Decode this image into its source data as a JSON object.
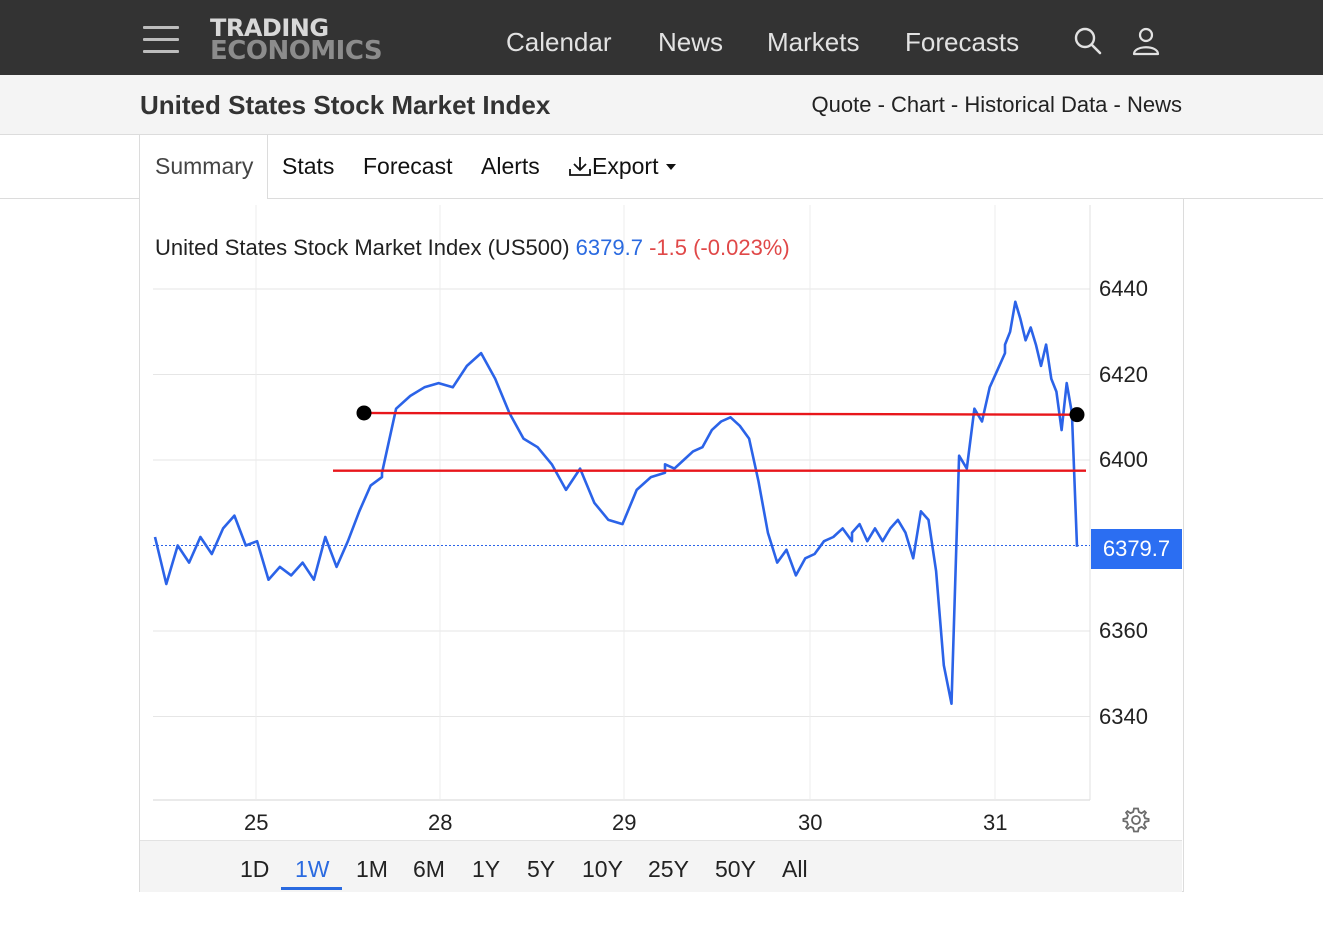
{
  "header": {
    "logo_line1": "TRADING",
    "logo_line2": "ECONOMICS",
    "nav": [
      "Calendar",
      "News",
      "Markets",
      "Forecasts"
    ],
    "icons": [
      "menu-icon",
      "search-icon",
      "user-icon"
    ]
  },
  "subheader": {
    "title": "United States Stock Market Index",
    "links": [
      "Quote",
      "Chart",
      "Historical Data",
      "News"
    ],
    "separator": " - "
  },
  "tabs": {
    "summary": "Summary",
    "stats": "Stats",
    "forecast": "Forecast",
    "alerts": "Alerts",
    "export": "Export"
  },
  "legend": {
    "name": "United States Stock Market Index (US500)",
    "price": "6379.7",
    "change": "-1.5 (-0.023%)"
  },
  "price_tag": "6379.7",
  "ranges": [
    "1D",
    "1W",
    "1M",
    "6M",
    "1Y",
    "5Y",
    "10Y",
    "25Y",
    "50Y",
    "All"
  ],
  "active_range": "1W",
  "colors": {
    "line": "#2b63e8",
    "drawn_lines": "#e8161b",
    "price_tag": "#2b6ef2",
    "negative": "#e04848",
    "header_bg": "#333333"
  },
  "chart_data": {
    "type": "line",
    "title": "United States Stock Market Index (US500)",
    "x_ticks": [
      "25",
      "28",
      "29",
      "30",
      "31"
    ],
    "y_ticks": [
      6340,
      6360,
      6400,
      6420,
      6440
    ],
    "ylim": [
      6320,
      6460
    ],
    "last_value": 6379.7,
    "grid": true,
    "series": [
      {
        "points": [
          [
            "25",
            6382
          ],
          [
            "25",
            6371
          ],
          [
            "25",
            6380
          ],
          [
            "25",
            6376
          ],
          [
            "25",
            6382
          ],
          [
            "25",
            6378
          ],
          [
            "25",
            6384
          ],
          [
            "25",
            6387
          ],
          [
            "25",
            6380
          ],
          [
            "25",
            6381
          ],
          [
            "25",
            6372
          ],
          [
            "25",
            6375
          ],
          [
            "25",
            6373
          ],
          [
            "25",
            6376
          ],
          [
            "25",
            6372
          ],
          [
            "25",
            6382
          ],
          [
            "25",
            6375
          ],
          [
            "25",
            6381
          ],
          [
            "25",
            6388
          ],
          [
            "25",
            6394
          ],
          [
            "25",
            6396
          ],
          [
            "28",
            6397
          ],
          [
            "28",
            6412
          ],
          [
            "28",
            6415
          ],
          [
            "28",
            6417
          ],
          [
            "28",
            6418
          ],
          [
            "28",
            6417
          ],
          [
            "28",
            6422
          ],
          [
            "28",
            6425
          ],
          [
            "28",
            6419
          ],
          [
            "28",
            6411
          ],
          [
            "28",
            6405
          ],
          [
            "28",
            6403
          ],
          [
            "28",
            6399
          ],
          [
            "28",
            6393
          ],
          [
            "28",
            6398
          ],
          [
            "28",
            6390
          ],
          [
            "28",
            6386
          ],
          [
            "28",
            6385
          ],
          [
            "28",
            6393
          ],
          [
            "28",
            6396
          ],
          [
            "28",
            6397
          ],
          [
            "29",
            6399
          ],
          [
            "29",
            6398
          ],
          [
            "29",
            6400
          ],
          [
            "29",
            6402
          ],
          [
            "29",
            6403
          ],
          [
            "29",
            6407
          ],
          [
            "29",
            6409
          ],
          [
            "29",
            6410
          ],
          [
            "29",
            6408
          ],
          [
            "29",
            6405
          ],
          [
            "29",
            6395
          ],
          [
            "29",
            6383
          ],
          [
            "29",
            6376
          ],
          [
            "29",
            6379
          ],
          [
            "29",
            6373
          ],
          [
            "29",
            6377
          ],
          [
            "29",
            6378
          ],
          [
            "29",
            6381
          ],
          [
            "29",
            6382
          ],
          [
            "29",
            6384
          ],
          [
            "29",
            6381
          ],
          [
            "30",
            6383
          ],
          [
            "30",
            6385
          ],
          [
            "30",
            6381
          ],
          [
            "30",
            6384
          ],
          [
            "30",
            6381
          ],
          [
            "30",
            6384
          ],
          [
            "30",
            6386
          ],
          [
            "30",
            6383
          ],
          [
            "30",
            6377
          ],
          [
            "30",
            6388
          ],
          [
            "30",
            6386
          ],
          [
            "30",
            6374
          ],
          [
            "30",
            6352
          ],
          [
            "30",
            6343
          ],
          [
            "30",
            6401
          ],
          [
            "30",
            6398
          ],
          [
            "30",
            6412
          ],
          [
            "30",
            6409
          ],
          [
            "30",
            6417
          ],
          [
            "30",
            6421
          ],
          [
            "30",
            6425
          ],
          [
            "31",
            6427
          ],
          [
            "31",
            6430
          ],
          [
            "31",
            6437
          ],
          [
            "31",
            6433
          ],
          [
            "31",
            6428
          ],
          [
            "31",
            6431
          ],
          [
            "31",
            6427
          ],
          [
            "31",
            6422
          ],
          [
            "31",
            6427
          ],
          [
            "31",
            6419
          ],
          [
            "31",
            6416
          ],
          [
            "31",
            6407
          ],
          [
            "31",
            6418
          ],
          [
            "31",
            6411
          ],
          [
            "31",
            6379.7
          ]
        ]
      }
    ],
    "drawn_lines": [
      {
        "from": [
          "28",
          6411
        ],
        "to": [
          "31",
          6410.6
        ]
      },
      {
        "from": [
          "28",
          6397.5
        ],
        "to": [
          "31",
          6397.5
        ]
      }
    ]
  }
}
